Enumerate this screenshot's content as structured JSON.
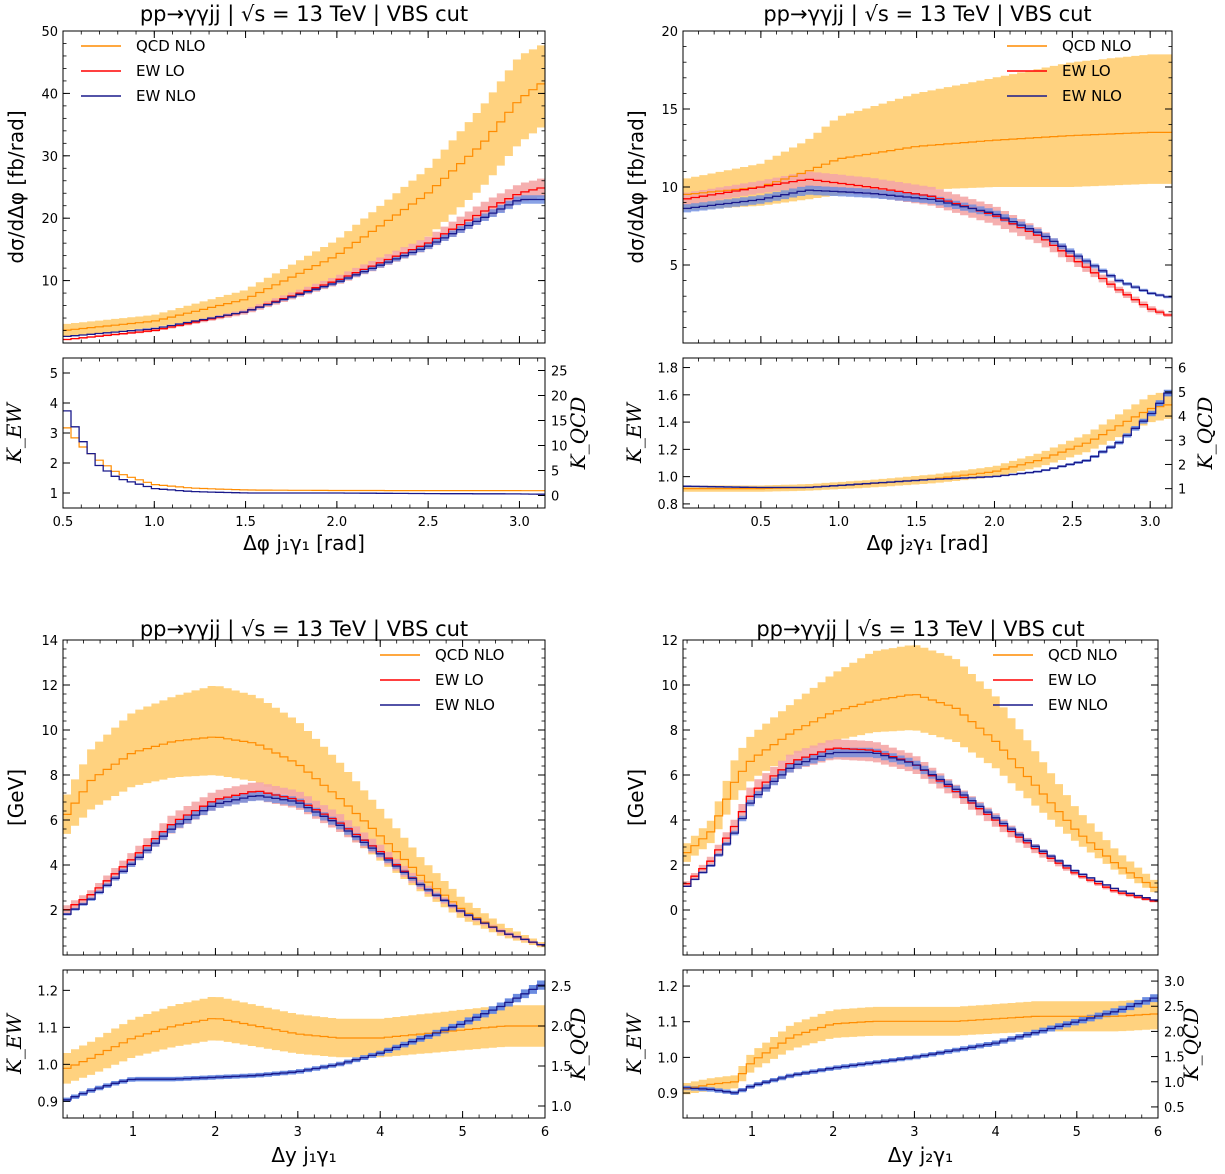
{
  "colors": {
    "qcd": "#ff8c00",
    "qcd_band": "#ffd27f",
    "ew_lo": "#ff0000",
    "ew_lo_band": "#f4a6a6",
    "ew_nlo": "#1a1a8c",
    "ew_nlo_band": "#6b8be0",
    "ew_overlap": "#8b6b5a"
  },
  "chart_data": [
    {
      "type": "line",
      "title": "pp→γγjj | √s = 13 TeV | VBS cut",
      "xlabel": "Δφ j₁γ₁ [rad]",
      "ylabel": "dσ/dΔφ [fb/rad]",
      "xlim": [
        0.5,
        3.14
      ],
      "ylim": [
        0,
        50
      ],
      "xticks": [
        "0.5",
        "1.0",
        "1.5",
        "2.0",
        "2.5",
        "3.0"
      ],
      "yticks": [
        "10",
        "20",
        "30",
        "40",
        "50"
      ],
      "legend": [
        "QCD NLO",
        "EW LO",
        "EW NLO"
      ],
      "legend_position": "top-left",
      "series": [
        {
          "name": "QCD NLO",
          "x": [
            0.5,
            1.0,
            1.5,
            2.0,
            2.5,
            2.8,
            3.0,
            3.14
          ],
          "y": [
            2,
            3.5,
            7,
            14,
            24,
            32,
            39,
            42
          ],
          "lo": [
            1,
            2.5,
            5,
            10,
            17,
            25,
            32,
            35
          ],
          "hi": [
            3,
            4.5,
            8.5,
            16.5,
            28,
            38,
            46,
            48
          ]
        },
        {
          "name": "EW LO",
          "x": [
            0.5,
            1.0,
            1.5,
            2.0,
            2.5,
            2.8,
            3.0,
            3.14
          ],
          "y": [
            0.5,
            2,
            5,
            10,
            16,
            21,
            24,
            25
          ],
          "lo": [
            0.4,
            1.8,
            4.6,
            9.3,
            15,
            19.5,
            22.5,
            23.5
          ],
          "hi": [
            0.6,
            2.2,
            5.4,
            10.7,
            17,
            22.5,
            25.5,
            26.5
          ]
        },
        {
          "name": "EW NLO",
          "x": [
            0.5,
            1.0,
            1.5,
            2.0,
            2.5,
            2.8,
            3.0,
            3.14
          ],
          "y": [
            1,
            2.3,
            5,
            9.7,
            15.5,
            20,
            23,
            23
          ]
        },
        {
          "name": "K_EW",
          "x": [
            0.5,
            0.6,
            0.7,
            0.8,
            1.0,
            1.2,
            1.5,
            2.0,
            2.5,
            3.0,
            3.14
          ],
          "y": [
            4.0,
            2.8,
            1.9,
            1.5,
            1.15,
            1.05,
            1.0,
            1.0,
            0.98,
            0.97,
            0.96
          ]
        },
        {
          "name": "K_QCD",
          "x": [
            0.5,
            0.6,
            0.7,
            0.8,
            1.0,
            1.2,
            1.5,
            2.0,
            2.5,
            3.0,
            3.14
          ],
          "y": [
            14.5,
            10,
            7,
            4.5,
            2.2,
            1.5,
            1.1,
            1.0,
            0.98,
            0.97,
            0.96
          ]
        }
      ],
      "ratio_panel": {
        "ylabel_left": "K_EW",
        "ylabel_right": "K_QCD",
        "ylim_left": [
          0.5,
          5.5
        ],
        "ylim_right": [
          -2.5,
          27.5
        ],
        "yticks_left": [
          "1",
          "2",
          "3",
          "4",
          "5"
        ],
        "yticks_right": [
          "0",
          "5",
          "10",
          "15",
          "20",
          "25"
        ]
      }
    },
    {
      "type": "line",
      "title": "pp→γγjj | √s = 13 TeV | VBS cut",
      "xlabel": "Δφ j₂γ₁ [rad]",
      "ylabel": "dσ/dΔφ [fb/rad]",
      "xlim": [
        0,
        3.14
      ],
      "ylim": [
        0,
        20
      ],
      "xticks": [
        "0.5",
        "1.0",
        "1.5",
        "2.0",
        "2.5",
        "3.0"
      ],
      "yticks": [
        "5",
        "10",
        "15",
        "20"
      ],
      "legend": [
        "QCD NLO",
        "EW LO",
        "EW NLO"
      ],
      "legend_position": "top-right",
      "series": [
        {
          "name": "QCD NLO",
          "x": [
            0,
            0.5,
            0.8,
            1.0,
            1.5,
            2.0,
            2.5,
            3.0,
            3.14
          ],
          "y": [
            9.5,
            10,
            11,
            11.8,
            12.6,
            13,
            13.3,
            13.5,
            13.5
          ],
          "lo": [
            8.5,
            8.8,
            9.2,
            9.5,
            9.8,
            10,
            10,
            10.2,
            10.2
          ],
          "hi": [
            10.5,
            11.5,
            13,
            14.5,
            16,
            17,
            18,
            18.5,
            18.5
          ]
        },
        {
          "name": "EW LO",
          "x": [
            0,
            0.5,
            0.8,
            1.2,
            1.6,
            2.0,
            2.3,
            2.6,
            2.8,
            3.0,
            3.14
          ],
          "y": [
            9.2,
            10,
            10.5,
            10,
            9.4,
            8.2,
            6.8,
            4.8,
            3.4,
            2.2,
            1.7
          ],
          "lo": [
            8.8,
            9.6,
            10.0,
            9.4,
            8.8,
            7.6,
            6.3,
            4.5,
            3.2,
            2.0,
            1.6
          ],
          "hi": [
            9.6,
            10.4,
            11.0,
            10.6,
            10.0,
            8.8,
            7.3,
            5.1,
            3.6,
            2.4,
            1.8
          ]
        },
        {
          "name": "EW NLO",
          "x": [
            0,
            0.5,
            0.8,
            1.2,
            1.6,
            2.0,
            2.3,
            2.6,
            2.8,
            3.0,
            3.14
          ],
          "y": [
            8.6,
            9.2,
            9.8,
            9.6,
            9.2,
            8.3,
            7.0,
            5.2,
            4.0,
            3.2,
            2.9
          ]
        },
        {
          "name": "K_EW",
          "x": [
            0,
            0.5,
            0.8,
            1.2,
            1.6,
            2.0,
            2.3,
            2.6,
            2.8,
            3.0,
            3.14
          ],
          "y": [
            0.93,
            0.92,
            0.92,
            0.95,
            0.98,
            1.0,
            1.04,
            1.12,
            1.25,
            1.45,
            1.65
          ]
        },
        {
          "name": "K_QCD",
          "x": [
            0,
            0.5,
            0.8,
            1.2,
            1.6,
            2.0,
            2.3,
            2.6,
            2.8,
            3.0,
            3.14
          ],
          "y": [
            1.0,
            1.0,
            1.05,
            1.2,
            1.4,
            1.7,
            2.2,
            2.9,
            3.6,
            4.3,
            4.5
          ]
        }
      ],
      "ratio_panel": {
        "ylabel_left": "K_EW",
        "ylabel_right": "K_QCD",
        "ylim_left": [
          0.77,
          1.87
        ],
        "ylim_right": [
          0.2,
          6.4
        ],
        "yticks_left": [
          "0.8",
          "1.0",
          "1.2",
          "1.4",
          "1.6",
          "1.8"
        ],
        "yticks_right": [
          "1",
          "2",
          "3",
          "4",
          "5",
          "6"
        ]
      }
    },
    {
      "type": "line",
      "title": "pp→γγjj | √s = 13 TeV | VBS cut",
      "xlabel": "Δy j₁γ₁",
      "ylabel": "[GeV]",
      "xlim": [
        0.15,
        6.0
      ],
      "ylim": [
        0,
        14
      ],
      "xticks": [
        "1",
        "2",
        "3",
        "4",
        "5",
        "6"
      ],
      "yticks": [
        "2",
        "4",
        "6",
        "8",
        "10",
        "12",
        "14"
      ],
      "legend": [
        "QCD NLO",
        "EW LO",
        "EW NLO"
      ],
      "legend_position": "top-right",
      "series": [
        {
          "name": "QCD NLO",
          "x": [
            0.15,
            0.5,
            1.0,
            1.5,
            2.0,
            2.5,
            3.0,
            3.5,
            4.0,
            4.5,
            5.0,
            5.5,
            6.0
          ],
          "y": [
            6,
            7.8,
            9,
            9.5,
            9.7,
            9.4,
            8.5,
            7.0,
            5.3,
            3.5,
            2.0,
            1.0,
            0.4
          ],
          "lo": [
            5.2,
            6.5,
            7.5,
            7.9,
            8.0,
            7.7,
            6.9,
            5.6,
            4.2,
            2.8,
            1.6,
            0.8,
            0.3
          ],
          "hi": [
            6.8,
            9.2,
            10.8,
            11.5,
            12.0,
            11.5,
            10.4,
            8.6,
            6.5,
            4.3,
            2.5,
            1.3,
            0.5
          ]
        },
        {
          "name": "EW LO",
          "x": [
            0.15,
            0.5,
            1.0,
            1.5,
            2.0,
            2.5,
            3.0,
            3.5,
            4.0,
            4.5,
            5.0,
            5.5,
            6.0
          ],
          "y": [
            1.9,
            2.7,
            4.3,
            5.9,
            6.9,
            7.3,
            6.9,
            5.9,
            4.6,
            3.1,
            1.9,
            1.0,
            0.4
          ],
          "lo": [
            1.7,
            2.5,
            4.0,
            5.5,
            6.5,
            6.9,
            6.5,
            5.5,
            4.3,
            2.9,
            1.8,
            0.9,
            0.35
          ],
          "hi": [
            2.1,
            2.9,
            4.6,
            6.3,
            7.3,
            7.7,
            7.3,
            6.3,
            4.9,
            3.3,
            2.0,
            1.1,
            0.45
          ]
        },
        {
          "name": "EW NLO",
          "x": [
            0.15,
            0.5,
            1.0,
            1.5,
            2.0,
            2.5,
            3.0,
            3.5,
            4.0,
            4.5,
            5.0,
            5.5,
            6.0
          ],
          "y": [
            1.7,
            2.5,
            4.1,
            5.7,
            6.7,
            7.1,
            6.8,
            5.8,
            4.5,
            3.1,
            1.9,
            1.0,
            0.4
          ]
        },
        {
          "name": "K_EW",
          "x": [
            0.15,
            0.5,
            0.8,
            1.0,
            1.5,
            2.0,
            2.5,
            3.0,
            3.5,
            4.0,
            4.5,
            5.0,
            5.5,
            6.0
          ],
          "y": [
            0.9,
            0.93,
            0.95,
            0.96,
            0.96,
            0.965,
            0.97,
            0.98,
            1.0,
            1.03,
            1.07,
            1.11,
            1.16,
            1.22
          ]
        },
        {
          "name": "K_QCD",
          "x": [
            0.15,
            0.5,
            1.0,
            1.5,
            2.0,
            2.5,
            3.0,
            3.5,
            4.0,
            4.5,
            5.0,
            5.5,
            6.0
          ],
          "y": [
            1.45,
            1.6,
            1.85,
            2.0,
            2.1,
            2.0,
            1.9,
            1.85,
            1.85,
            1.9,
            1.95,
            2.0,
            2.0
          ]
        }
      ],
      "ratio_panel": {
        "ylabel_left": "K_EW",
        "ylabel_right": "K_QCD",
        "ylim_left": [
          0.855,
          1.255
        ],
        "ylim_right": [
          0.85,
          2.7
        ],
        "yticks_left": [
          "0.9",
          "1.0",
          "1.1",
          "1.2"
        ],
        "yticks_right": [
          "1.0",
          "1.5",
          "2.0",
          "2.5"
        ]
      }
    },
    {
      "type": "line",
      "title": "pp→γγjj | √s = 13 TeV | VBS cut",
      "xlabel": "Δy j₂γ₁",
      "ylabel": "[GeV]",
      "xlim": [
        0.15,
        6.0
      ],
      "ylim": [
        -2,
        12
      ],
      "xticks": [
        "1",
        "2",
        "3",
        "4",
        "5",
        "6"
      ],
      "yticks": [
        "0",
        "2",
        "4",
        "6",
        "8",
        "10",
        "12"
      ],
      "legend": [
        "QCD NLO",
        "EW LO",
        "EW NLO"
      ],
      "legend_position": "top-right",
      "series": [
        {
          "name": "QCD NLO",
          "x": [
            0.15,
            0.5,
            0.8,
            1.0,
            1.5,
            2.0,
            2.5,
            3.0,
            3.5,
            4.0,
            4.5,
            5.0,
            5.5,
            6.0
          ],
          "y": [
            2.4,
            3.5,
            5.8,
            6.7,
            7.9,
            8.8,
            9.3,
            9.6,
            9.0,
            7.5,
            5.5,
            3.5,
            2.0,
            0.9
          ],
          "lo": [
            2.0,
            3.0,
            5.0,
            5.8,
            6.9,
            7.5,
            7.9,
            8.0,
            7.5,
            6.3,
            4.6,
            3.0,
            1.7,
            0.7
          ],
          "hi": [
            2.8,
            4.0,
            6.8,
            7.8,
            9.2,
            10.5,
            11.5,
            11.8,
            11.2,
            9.5,
            7.0,
            4.5,
            2.6,
            1.2
          ]
        },
        {
          "name": "EW LO",
          "x": [
            0.15,
            0.5,
            0.8,
            1.0,
            1.5,
            2.0,
            2.5,
            3.0,
            3.5,
            4.0,
            4.5,
            5.0,
            5.5,
            6.0
          ],
          "y": [
            1.0,
            2.2,
            3.8,
            5.2,
            6.6,
            7.2,
            7.1,
            6.5,
            5.3,
            4.0,
            2.7,
            1.6,
            0.8,
            0.35
          ],
          "lo": [
            0.9,
            2.0,
            3.5,
            4.8,
            6.2,
            6.7,
            6.6,
            6.1,
            5.0,
            3.7,
            2.5,
            1.5,
            0.7,
            0.3
          ],
          "hi": [
            1.1,
            2.4,
            4.1,
            5.6,
            7.0,
            7.6,
            7.5,
            6.9,
            5.6,
            4.3,
            2.9,
            1.7,
            0.9,
            0.4
          ]
        },
        {
          "name": "EW NLO",
          "x": [
            0.15,
            0.5,
            0.8,
            1.0,
            1.5,
            2.0,
            2.5,
            3.0,
            3.5,
            4.0,
            4.5,
            5.0,
            5.5,
            6.0
          ],
          "y": [
            0.9,
            2.0,
            3.5,
            4.9,
            6.4,
            7.0,
            7.0,
            6.5,
            5.4,
            4.1,
            2.8,
            1.7,
            0.9,
            0.4
          ]
        },
        {
          "name": "K_EW",
          "x": [
            0.15,
            0.5,
            0.8,
            1.0,
            1.5,
            2.0,
            2.5,
            3.0,
            3.5,
            4.0,
            4.5,
            5.0,
            5.5,
            6.0
          ],
          "y": [
            0.915,
            0.91,
            0.9,
            0.92,
            0.95,
            0.97,
            0.985,
            1.0,
            1.02,
            1.04,
            1.07,
            1.1,
            1.13,
            1.17
          ]
        },
        {
          "name": "K_QCD",
          "x": [
            0.15,
            0.5,
            0.8,
            1.0,
            1.5,
            2.0,
            2.5,
            3.0,
            3.5,
            4.0,
            4.5,
            5.0,
            5.5,
            6.0
          ],
          "y": [
            0.85,
            0.95,
            1.0,
            1.4,
            1.9,
            2.15,
            2.2,
            2.2,
            2.2,
            2.25,
            2.3,
            2.3,
            2.3,
            2.35
          ]
        }
      ],
      "ratio_panel": {
        "ylabel_left": "K_EW",
        "ylabel_right": "K_QCD",
        "ylim_left": [
          0.83,
          1.245
        ],
        "ylim_right": [
          0.28,
          3.22
        ],
        "yticks_left": [
          "0.9",
          "1.0",
          "1.1",
          "1.2"
        ],
        "yticks_right": [
          "0.5",
          "1.0",
          "1.5",
          "2.0",
          "2.5",
          "3.0"
        ]
      }
    }
  ]
}
